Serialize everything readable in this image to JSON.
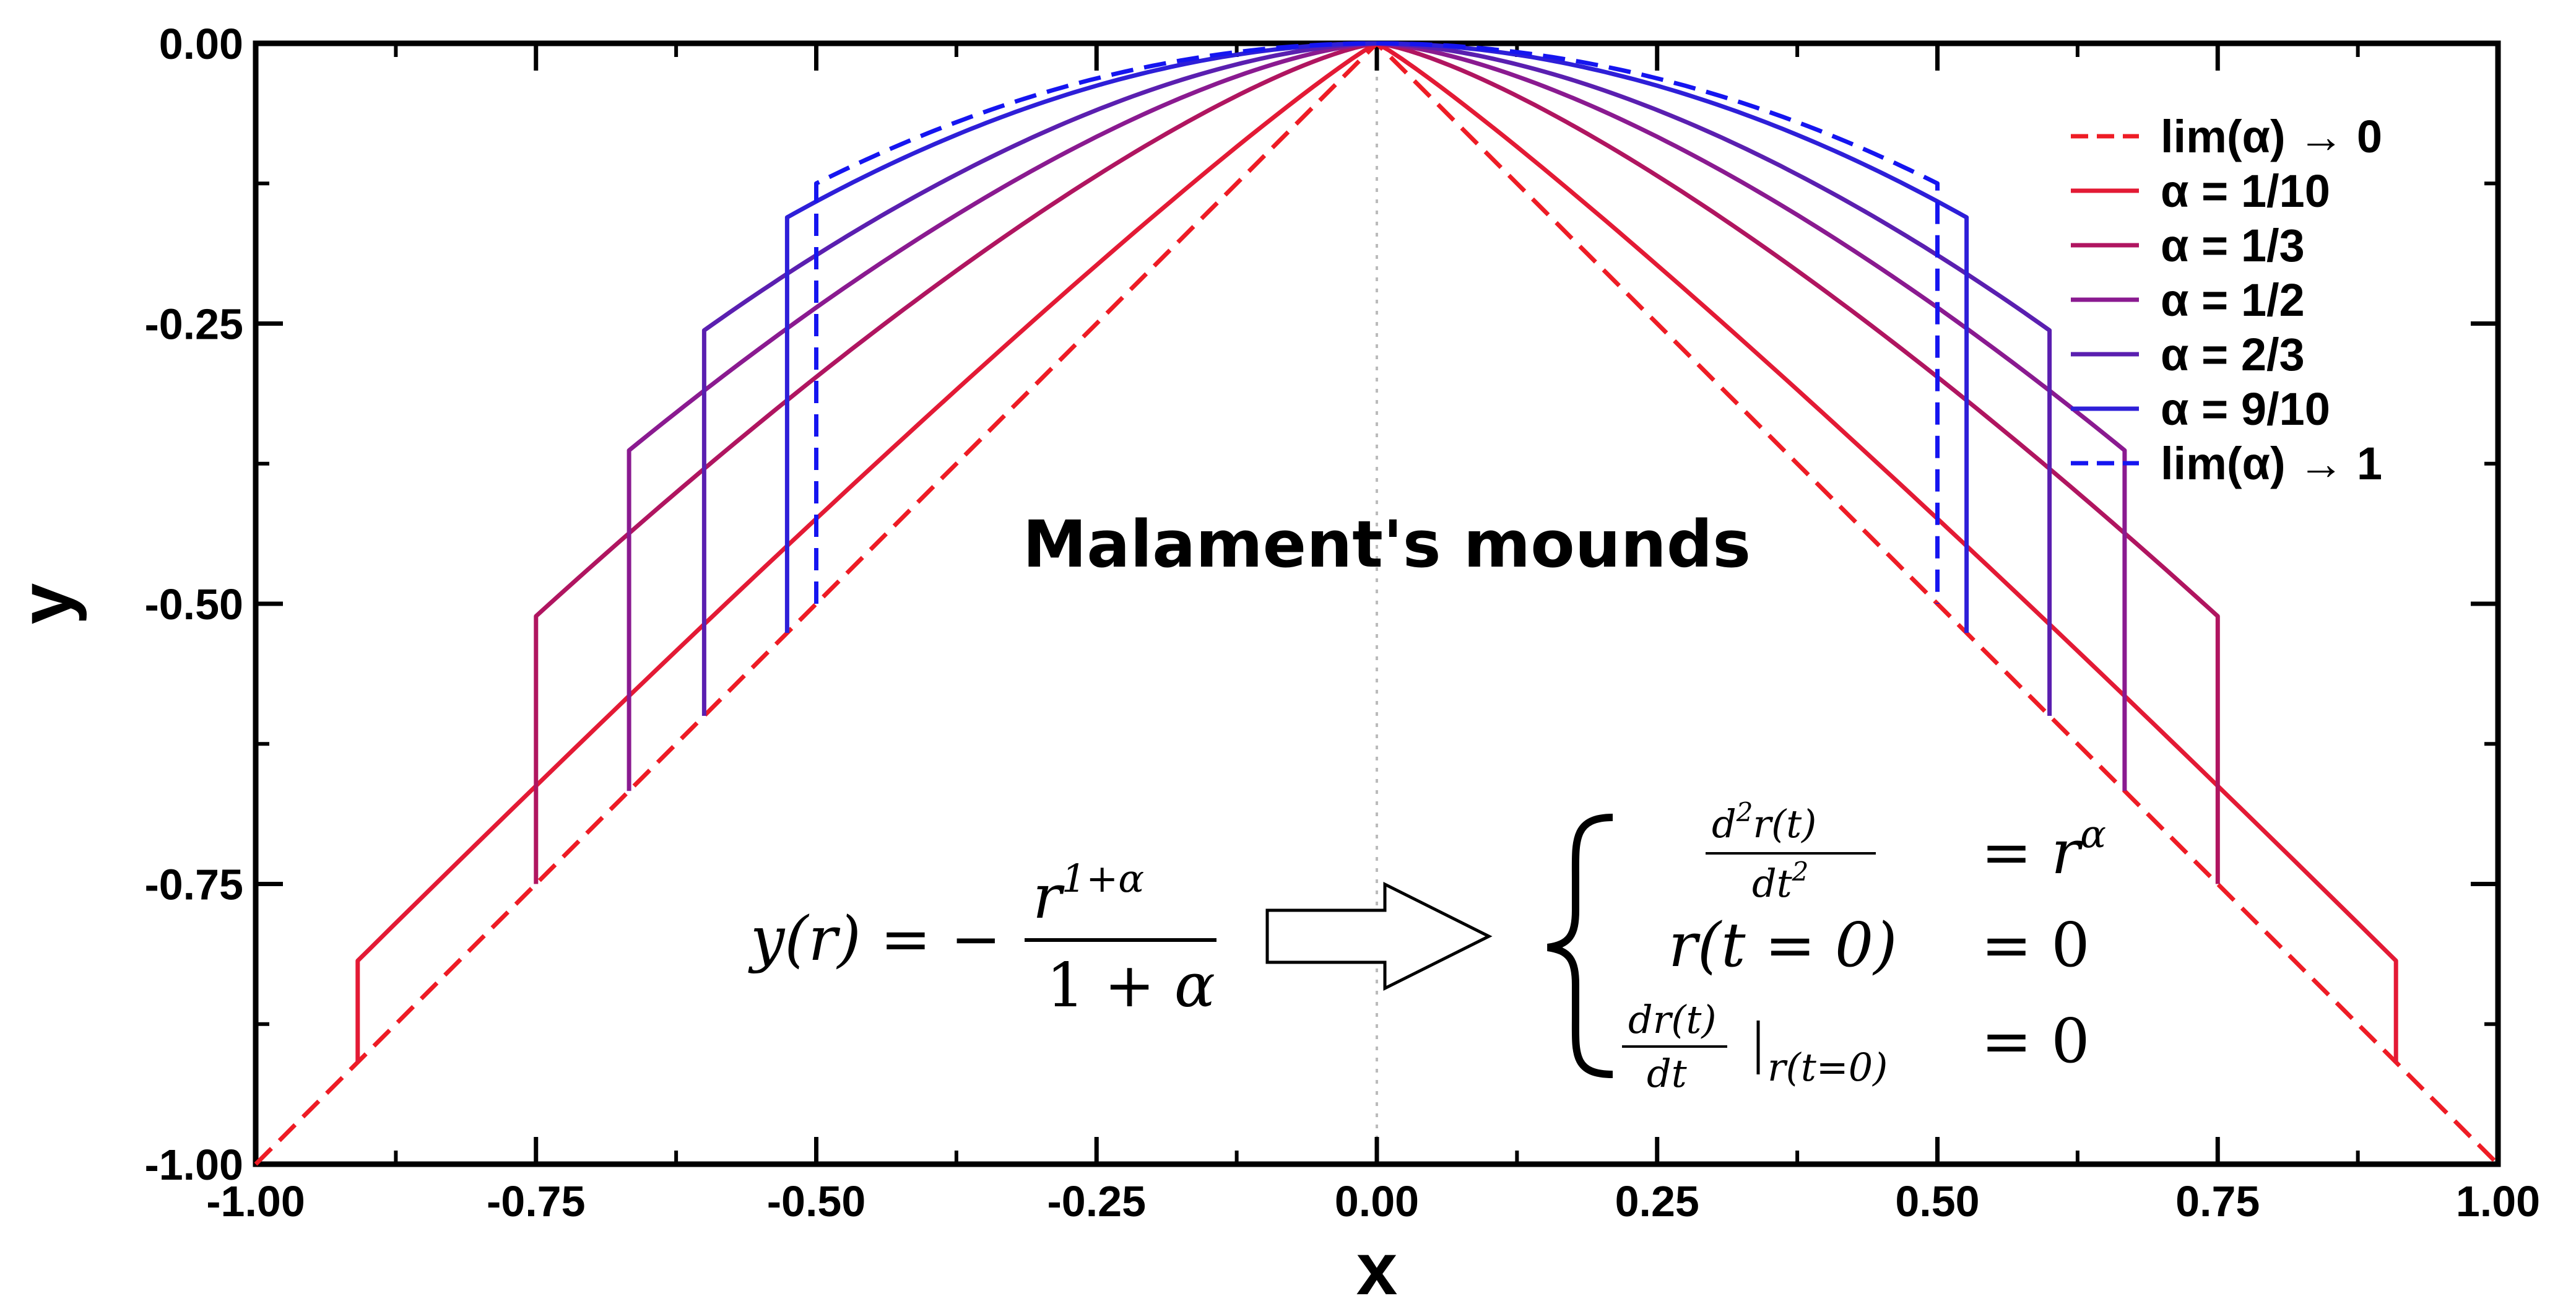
{
  "chart_data": {
    "type": "line",
    "title": "Malament's mounds",
    "xlabel": "x",
    "ylabel": "y",
    "xlim": [
      -1.0,
      1.0
    ],
    "ylim": [
      -1.0,
      0.0
    ],
    "x_ticks": [
      "-1.00",
      "-0.75",
      "-0.50",
      "-0.25",
      "0.00",
      "0.25",
      "0.50",
      "0.75",
      "1.00"
    ],
    "y_ticks": [
      "0.00",
      "-0.25",
      "-0.50",
      "-0.75",
      "-1.00"
    ],
    "grid": false,
    "legend_position": "top-right",
    "series": [
      {
        "name": "lim(α) → 0",
        "alpha": 0.0,
        "r_max": 1.0,
        "color": "#ee1c25",
        "dash": "dashed"
      },
      {
        "name": "α = 1/10",
        "alpha": 0.1,
        "r_max": 0.909,
        "color": "#e31a35",
        "dash": "solid"
      },
      {
        "name": "α = 1/3",
        "alpha": 0.3333,
        "r_max": 0.75,
        "color": "#b01560",
        "dash": "solid"
      },
      {
        "name": "α = 1/2",
        "alpha": 0.5,
        "r_max": 0.667,
        "color": "#8a1a90",
        "dash": "solid"
      },
      {
        "name": "α = 2/3",
        "alpha": 0.6667,
        "r_max": 0.6,
        "color": "#5a1fb0",
        "dash": "solid"
      },
      {
        "name": "α = 9/10",
        "alpha": 0.9,
        "r_max": 0.526,
        "color": "#2e1fd8",
        "dash": "solid"
      },
      {
        "name": "lim(α) → 1",
        "alpha": 1.0,
        "r_max": 0.5,
        "color": "#1515f0",
        "dash": "dashed"
      }
    ],
    "annotations": {
      "formula_left": "y(r) = −r^(1+α)/(1+α)",
      "system": [
        "d²r(t)/dt² = r^α",
        "r(t = 0) = 0",
        "dr(t)/dt |r(t=0) = 0"
      ]
    }
  }
}
